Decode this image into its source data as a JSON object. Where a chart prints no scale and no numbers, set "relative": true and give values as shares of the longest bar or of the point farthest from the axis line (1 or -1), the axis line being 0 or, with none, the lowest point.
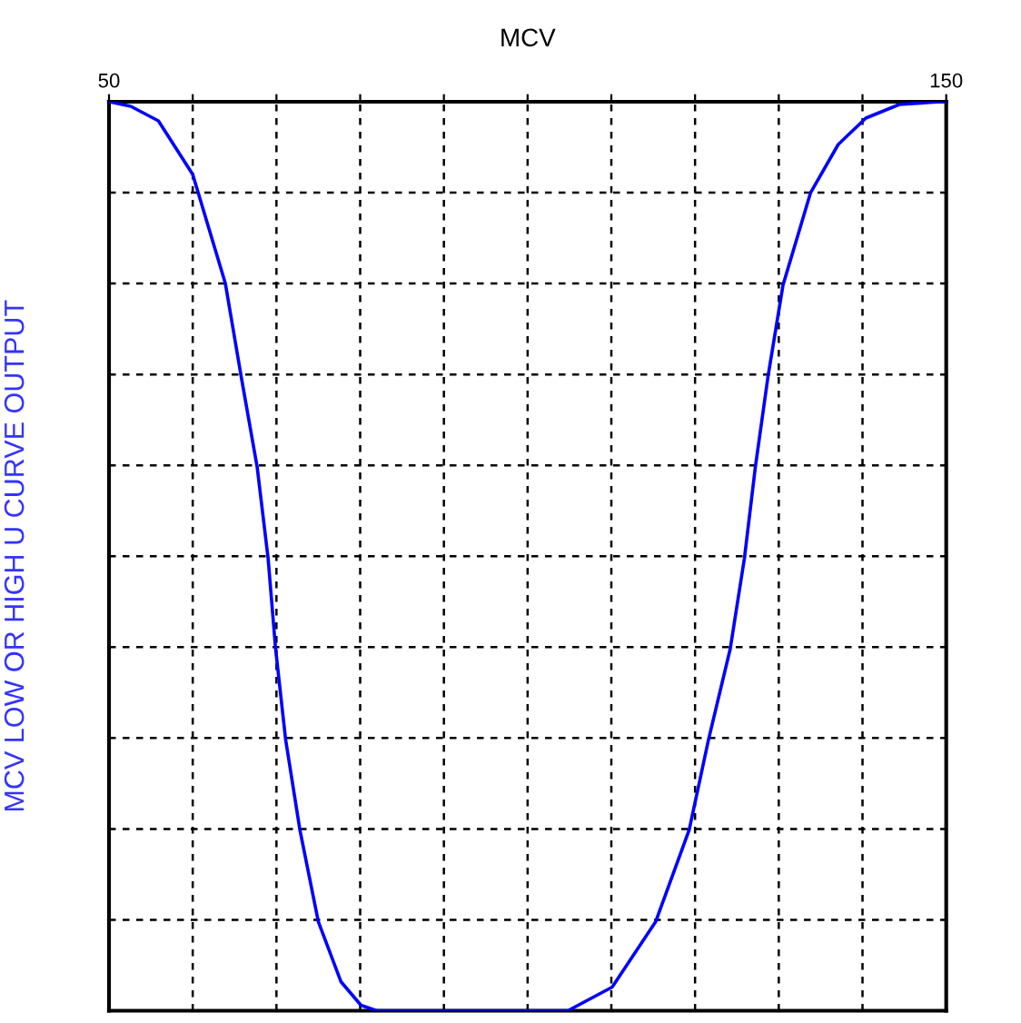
{
  "chart_data": {
    "type": "line",
    "title": "MCV",
    "ylabel": "MCV LOW OR HIGH U CURVE OUTPUT",
    "relative": true,
    "xlim": [
      50,
      150
    ],
    "xticks": [
      50,
      {
        "value": 60,
        "label": null
      },
      {
        "value": 70,
        "label": null
      },
      {
        "value": 80,
        "label": null
      },
      {
        "value": 90,
        "label": null
      },
      {
        "value": 100,
        "label": null
      },
      {
        "value": 110,
        "label": null
      },
      {
        "value": 120,
        "label": null
      },
      {
        "value": 130,
        "label": null
      },
      {
        "value": 140,
        "label": null
      },
      150
    ],
    "grid": true,
    "line_style": "solid",
    "marker": "none",
    "series": [
      {
        "color": "#0000ff",
        "x": [
          50,
          52.6,
          55.9,
          60,
          63.9,
          65.8,
          67.7,
          69.0,
          69.9,
          71.1,
          72.8,
          75.0,
          77.7,
          80.1,
          82.0,
          104.8,
          110.1,
          115.3,
          119.3,
          121.6,
          124.2,
          125.9,
          127.2,
          128.7,
          130.5,
          133.8,
          137.1,
          140.4,
          144.4,
          149.4,
          150
        ],
        "values": [
          1,
          0.995,
          0.979,
          0.92,
          0.8,
          0.697,
          0.598,
          0.498,
          0.398,
          0.298,
          0.199,
          0.098,
          0.032,
          0.006,
          0,
          0,
          0.026,
          0.098,
          0.199,
          0.298,
          0.398,
          0.498,
          0.598,
          0.697,
          0.798,
          0.9,
          0.953,
          0.982,
          0.997,
          1,
          1
        ]
      }
    ]
  }
}
